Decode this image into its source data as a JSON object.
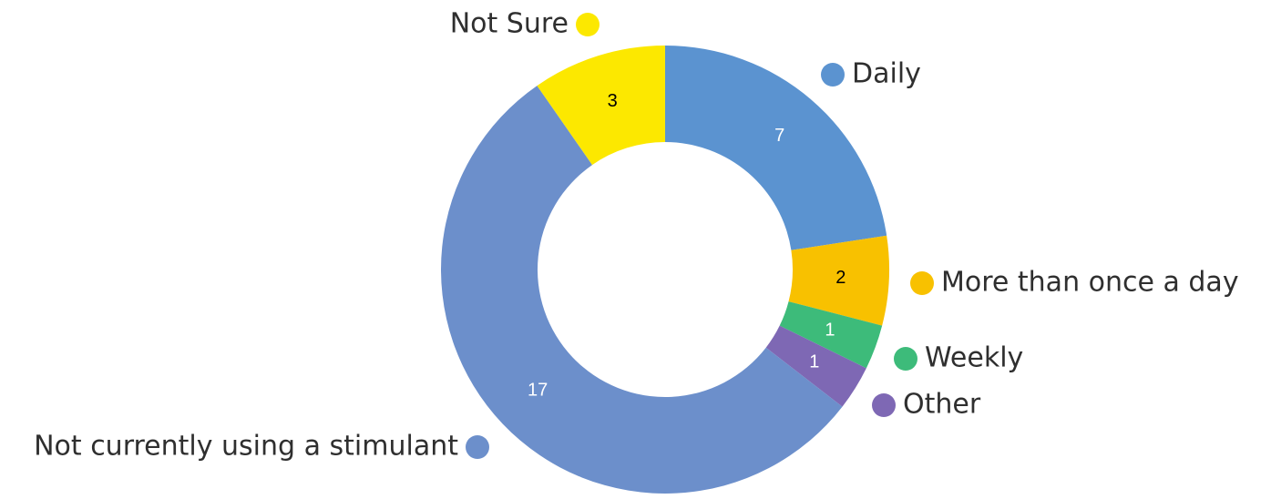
{
  "chart_data": {
    "type": "donut",
    "categories": [
      "Daily",
      "More than once a day",
      "Weekly",
      "Other",
      "Not currently using a stimulant",
      "Not Sure"
    ],
    "values": [
      7,
      2,
      1,
      1,
      17,
      3
    ],
    "colors": [
      "#5b93d0",
      "#f8c100",
      "#3dbb7a",
      "#7e68b4",
      "#6c8fcb",
      "#fce800"
    ]
  }
}
